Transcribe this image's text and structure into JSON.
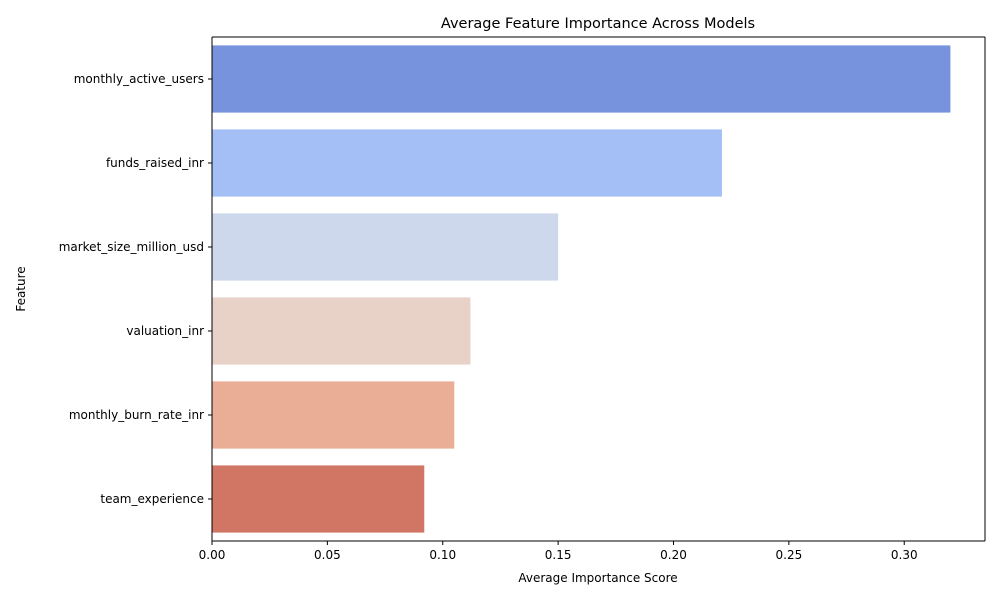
{
  "chart_data": {
    "type": "bar",
    "orientation": "horizontal",
    "title": "Average Feature Importance Across Models",
    "xlabel": "Average Importance Score",
    "ylabel": "Feature",
    "categories": [
      "monthly_active_users",
      "funds_raised_inr",
      "market_size_million_usd",
      "valuation_inr",
      "monthly_burn_rate_inr",
      "team_experience"
    ],
    "values": [
      0.32,
      0.221,
      0.15,
      0.112,
      0.105,
      0.092
    ],
    "colors": [
      "#7793de",
      "#a4bff5",
      "#cdd8ec",
      "#e8d2c8",
      "#eaad95",
      "#d17665"
    ],
    "xlim": [
      0,
      0.335
    ],
    "xticks": [
      0.0,
      0.05,
      0.1,
      0.15,
      0.2,
      0.25,
      0.3
    ],
    "xtick_labels": [
      "0.00",
      "0.05",
      "0.10",
      "0.15",
      "0.20",
      "0.25",
      "0.30"
    ],
    "grid": false,
    "legend": "none"
  }
}
